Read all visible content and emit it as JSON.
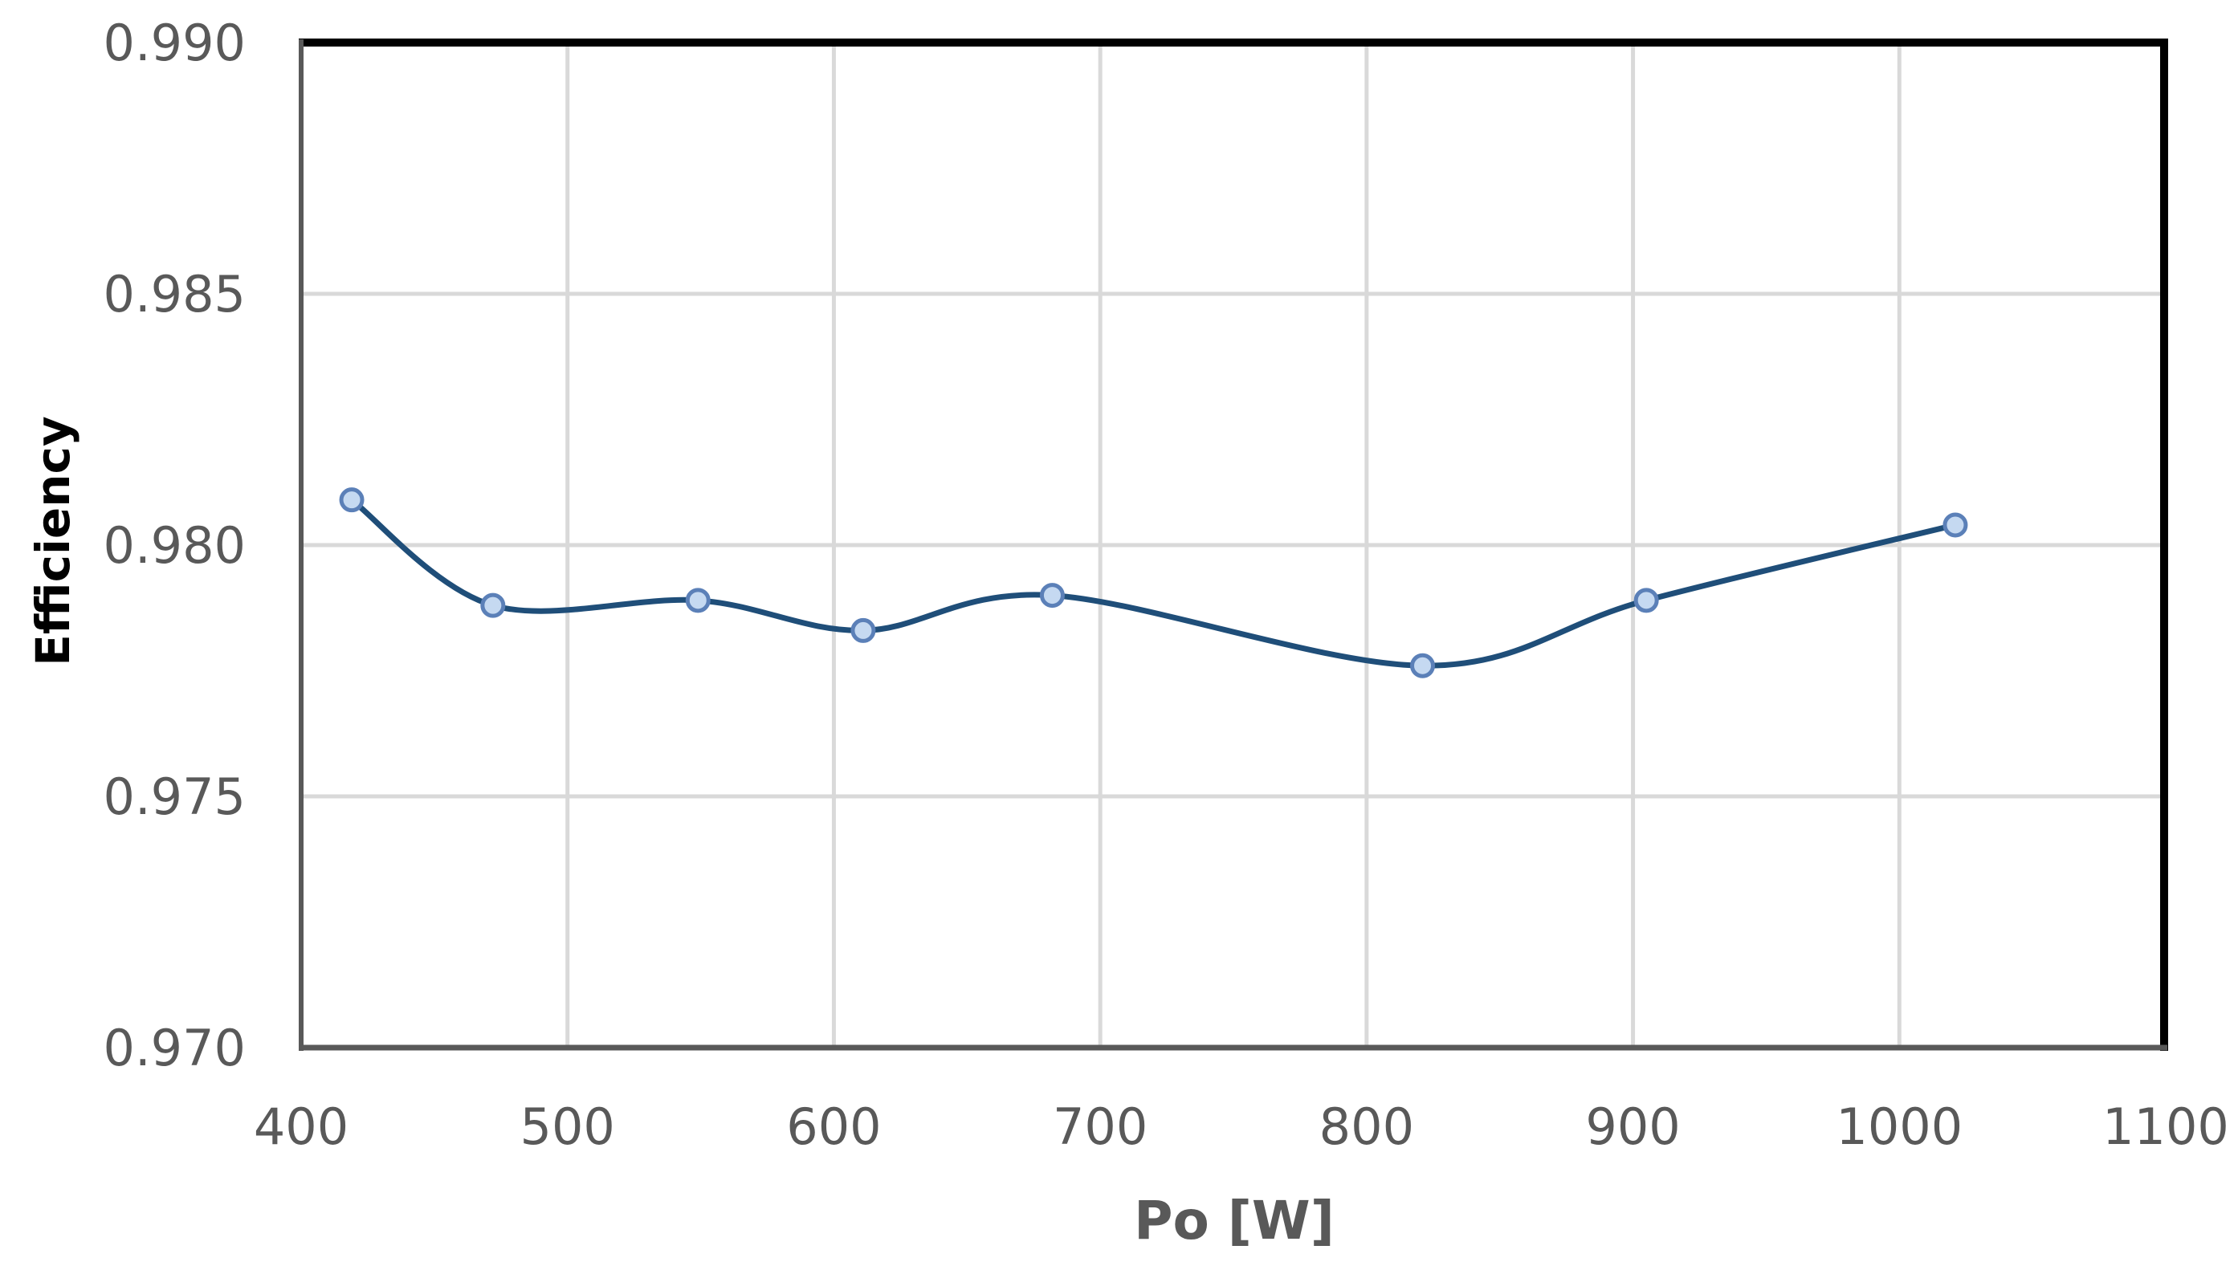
{
  "chart_data": {
    "type": "line",
    "title": "",
    "xlabel": "Po [W]",
    "ylabel": "Efficiency",
    "xlim": [
      400,
      1100
    ],
    "ylim": [
      0.97,
      0.99
    ],
    "x_ticks": [
      400,
      500,
      600,
      700,
      800,
      900,
      1000,
      1100
    ],
    "x_tick_labels": [
      "400",
      "500",
      "600",
      "700",
      "800",
      "900",
      "1000",
      "1100"
    ],
    "y_ticks": [
      0.97,
      0.975,
      0.98,
      0.985,
      0.99
    ],
    "y_tick_labels": [
      "0.970",
      "0.975",
      "0.980",
      "0.985",
      "0.990"
    ],
    "grid": true,
    "legend": null,
    "smooth": true,
    "series": [
      {
        "name": "Efficiency",
        "x": [
          419,
          472,
          549,
          611,
          682,
          821,
          905,
          1021
        ],
        "values": [
          0.9809,
          0.9788,
          0.9789,
          0.9783,
          0.979,
          0.9776,
          0.9789,
          0.9804
        ],
        "line_color": "#1f4e79",
        "marker_fill": "#c5d9f1",
        "marker_stroke": "#5b80b8"
      }
    ]
  }
}
